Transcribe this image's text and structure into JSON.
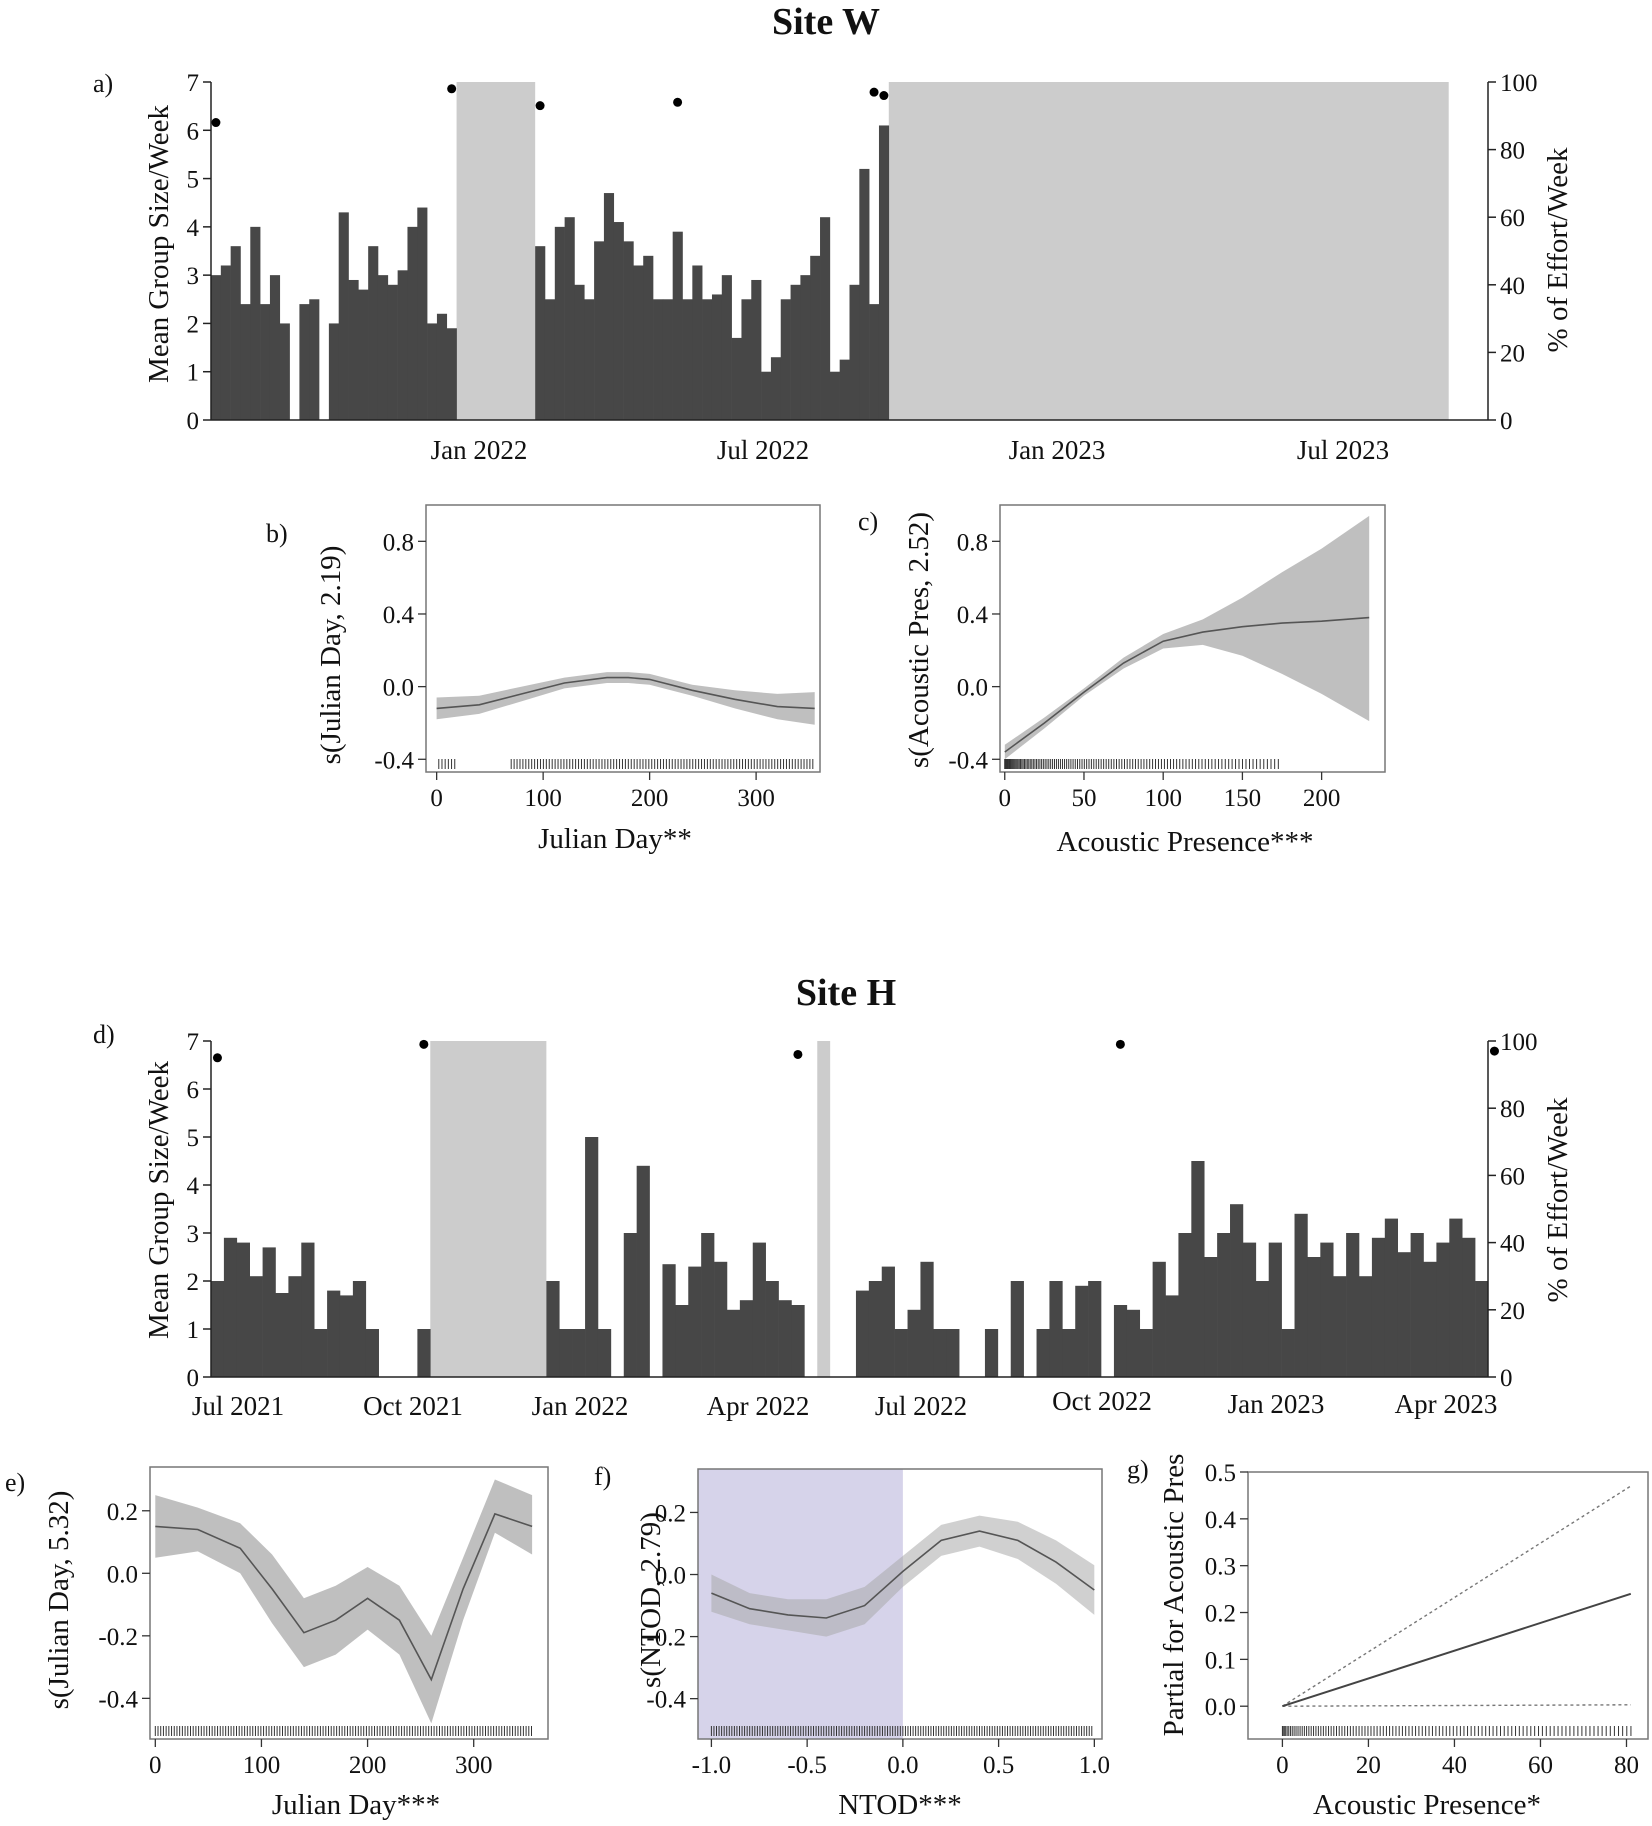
{
  "figure": {
    "site_w_title": "Site W",
    "site_h_title": "Site H"
  },
  "chart_data": [
    {
      "id": "a",
      "panel_label": "a)",
      "type": "bar",
      "bar_color": "#474747",
      "gap_color": "#cccccc",
      "ylabel": "Mean Group Size/Week",
      "ylabel_right": "% of Effort/Week",
      "ylim": [
        0,
        7
      ],
      "yticks": [
        "0",
        "1",
        "2",
        "3",
        "4",
        "5",
        "6",
        "7"
      ],
      "yticks_right": [
        "0",
        "20",
        "40",
        "60",
        "80",
        "100"
      ],
      "xticks": [
        "Jan 2022",
        "Jul 2022",
        "Jan 2023",
        "Jul 2023"
      ],
      "grid": false,
      "values": [
        3.0,
        3.2,
        3.6,
        2.4,
        4.0,
        2.4,
        3.0,
        2.0,
        null,
        2.4,
        2.5,
        null,
        2.0,
        4.3,
        2.9,
        2.7,
        3.6,
        3.0,
        2.8,
        3.1,
        4.0,
        4.4,
        2.0,
        2.2,
        1.9,
        null,
        null,
        null,
        null,
        null,
        null,
        null,
        null,
        3.6,
        2.5,
        4.0,
        4.2,
        2.8,
        2.5,
        3.7,
        4.7,
        4.1,
        3.7,
        3.2,
        3.4,
        2.5,
        2.5,
        3.9,
        2.5,
        3.2,
        2.5,
        2.6,
        3.0,
        1.7,
        2.5,
        2.9,
        1.0,
        1.3,
        2.5,
        2.8,
        3.0,
        3.4,
        4.2,
        1.0,
        1.25,
        2.8,
        5.2,
        2.4,
        6.1,
        null,
        null,
        null,
        null,
        null,
        null,
        null,
        null,
        null,
        null,
        null,
        null,
        null,
        null,
        null,
        null,
        null,
        null,
        null,
        null,
        null,
        null,
        null,
        null,
        null,
        null,
        null,
        null,
        null,
        null,
        null,
        null,
        null,
        null,
        null,
        null,
        null,
        null,
        null,
        null,
        null,
        null,
        null,
        null,
        null,
        null,
        null,
        null,
        null,
        null,
        null,
        null,
        null,
        null,
        null,
        null,
        null,
        null,
        null,
        null,
        null
      ],
      "effort_percent": [
        88,
        null,
        null,
        null,
        null,
        null,
        null,
        null,
        null,
        null,
        null,
        null,
        null,
        null,
        null,
        null,
        null,
        null,
        null,
        null,
        null,
        null,
        null,
        null,
        98,
        null,
        null,
        null,
        null,
        null,
        null,
        null,
        null,
        93,
        null,
        null,
        null,
        null,
        null,
        null,
        null,
        null,
        null,
        null,
        null,
        null,
        null,
        94,
        null,
        null,
        null,
        null,
        null,
        null,
        null,
        null,
        null,
        null,
        null,
        null,
        null,
        null,
        null,
        null,
        null,
        null,
        null,
        97,
        96
      ]
    },
    {
      "id": "b",
      "panel_label": "b)",
      "type": "line",
      "ylabel": "s(Julian Day, 2.19)",
      "xlabel": "Julian Day**",
      "xlim": [
        -10,
        360
      ],
      "ylim": [
        -0.47,
        1.0
      ],
      "xticks": [
        "0",
        "100",
        "200",
        "300"
      ],
      "yticks": [
        "-0.4",
        "0.0",
        "0.4",
        "0.8"
      ],
      "x": [
        0,
        40,
        80,
        120,
        160,
        180,
        200,
        240,
        280,
        320,
        355
      ],
      "y": [
        -0.12,
        -0.1,
        -0.04,
        0.02,
        0.05,
        0.05,
        0.04,
        -0.02,
        -0.07,
        -0.11,
        -0.12
      ],
      "lower": [
        -0.18,
        -0.15,
        -0.08,
        -0.01,
        0.02,
        0.02,
        0.01,
        -0.05,
        -0.12,
        -0.18,
        -0.21
      ],
      "upper": [
        -0.06,
        -0.05,
        0.0,
        0.05,
        0.08,
        0.08,
        0.07,
        0.01,
        -0.02,
        -0.04,
        -0.03
      ]
    },
    {
      "id": "c",
      "panel_label": "c)",
      "type": "line",
      "ylabel": "s(Acoustic Pres, 2.52)",
      "xlabel": "Acoustic Presence***",
      "xlim": [
        -3,
        240
      ],
      "ylim": [
        -0.47,
        1.0
      ],
      "xticks": [
        "0",
        "50",
        "100",
        "150",
        "200"
      ],
      "yticks": [
        "-0.4",
        "0.0",
        "0.4",
        "0.8"
      ],
      "x": [
        0,
        25,
        50,
        75,
        100,
        125,
        150,
        175,
        200,
        230
      ],
      "y": [
        -0.36,
        -0.2,
        -0.03,
        0.13,
        0.25,
        0.3,
        0.33,
        0.35,
        0.36,
        0.38
      ],
      "lower": [
        -0.4,
        -0.23,
        -0.05,
        0.1,
        0.21,
        0.23,
        0.17,
        0.07,
        -0.04,
        -0.19
      ],
      "upper": [
        -0.32,
        -0.17,
        -0.01,
        0.16,
        0.29,
        0.37,
        0.49,
        0.63,
        0.76,
        0.94
      ]
    },
    {
      "id": "d",
      "panel_label": "d)",
      "type": "bar",
      "bar_color": "#474747",
      "gap_color": "#cccccc",
      "ylabel": "Mean Group Size/Week",
      "ylabel_right": "% of Effort/Week",
      "ylim": [
        0,
        7
      ],
      "yticks": [
        "0",
        "1",
        "2",
        "3",
        "4",
        "5",
        "6",
        "7"
      ],
      "yticks_right": [
        "0",
        "20",
        "40",
        "60",
        "80",
        "100"
      ],
      "xticks": [
        "Jul 2021",
        "Oct 2021",
        "Jan 2022",
        "Apr 2022",
        "Jul 2022",
        "Oct 2022",
        "Jan 2023",
        "Apr 2023"
      ],
      "grid": false,
      "values": [
        2.0,
        2.9,
        2.8,
        2.1,
        2.7,
        1.75,
        2.1,
        2.8,
        1.0,
        1.8,
        1.7,
        2.0,
        1.0,
        null,
        null,
        null,
        1.0,
        null,
        null,
        null,
        null,
        null,
        null,
        null,
        null,
        null,
        2.0,
        1.0,
        1.0,
        5.0,
        1.0,
        null,
        3.0,
        4.4,
        null,
        2.35,
        1.5,
        2.3,
        3.0,
        2.4,
        1.4,
        1.6,
        2.8,
        2.0,
        1.6,
        1.5,
        null,
        null,
        null,
        null,
        1.8,
        2.0,
        2.3,
        1.0,
        1.4,
        2.4,
        1.0,
        1.0,
        null,
        null,
        1.0,
        null,
        2.0,
        null,
        1.0,
        2.0,
        1.0,
        1.9,
        2.0,
        null,
        1.5,
        1.4,
        1.0,
        2.4,
        1.7,
        3.0,
        4.5,
        2.5,
        3.0,
        3.6,
        2.8,
        2.0,
        2.8,
        1.0,
        3.4,
        2.5,
        2.8,
        2.1,
        3.0,
        2.1,
        2.9,
        3.3,
        2.6,
        3.0,
        2.4,
        2.8,
        3.3,
        2.9,
        2.0
      ],
      "effort_percent": [
        95,
        null,
        null,
        null,
        null,
        null,
        null,
        null,
        null,
        null,
        null,
        null,
        null,
        null,
        null,
        null,
        99,
        null,
        null,
        null,
        null,
        null,
        null,
        null,
        null,
        null,
        null,
        null,
        null,
        null,
        null,
        null,
        null,
        null,
        null,
        null,
        null,
        null,
        null,
        null,
        null,
        null,
        null,
        null,
        null,
        96,
        null,
        null,
        null,
        null,
        null,
        null,
        null,
        null,
        null,
        null,
        null,
        null,
        null,
        null,
        null,
        null,
        null,
        null,
        null,
        null,
        null,
        null,
        null,
        null,
        99,
        null,
        null,
        null,
        null,
        null,
        null,
        null,
        null,
        null,
        null,
        null,
        null,
        null,
        null,
        null,
        null,
        null,
        null,
        null,
        null,
        null,
        null,
        null,
        null,
        null,
        null,
        null,
        null,
        97
      ]
    },
    {
      "id": "e",
      "panel_label": "e)",
      "type": "line",
      "ylabel": "s(Julian Day, 5.32)",
      "xlabel": "Julian Day***",
      "xlim": [
        -5,
        370
      ],
      "ylim": [
        -0.53,
        0.34
      ],
      "xticks": [
        "0",
        "100",
        "200",
        "300"
      ],
      "yticks": [
        "-0.4",
        "-0.2",
        "0.0",
        "0.2"
      ],
      "x": [
        0,
        40,
        80,
        110,
        140,
        170,
        200,
        230,
        260,
        290,
        320,
        355
      ],
      "y": [
        0.15,
        0.14,
        0.08,
        -0.05,
        -0.19,
        -0.15,
        -0.08,
        -0.15,
        -0.34,
        -0.05,
        0.19,
        0.15
      ],
      "lower": [
        0.05,
        0.07,
        0.0,
        -0.16,
        -0.3,
        -0.26,
        -0.18,
        -0.26,
        -0.48,
        -0.15,
        0.13,
        0.06
      ],
      "upper": [
        0.25,
        0.21,
        0.16,
        0.06,
        -0.08,
        -0.04,
        0.02,
        -0.04,
        -0.2,
        0.05,
        0.3,
        0.25
      ]
    },
    {
      "id": "f",
      "panel_label": "f)",
      "type": "line",
      "ylabel": "s(NTOD, 2.79)",
      "xlabel": "NTOD***",
      "xlim": [
        -1.07,
        1.04
      ],
      "ylim": [
        -0.53,
        0.34
      ],
      "xticks": [
        "-1.0",
        "-0.5",
        "0.0",
        "0.5",
        "1.0"
      ],
      "yticks": [
        "-0.4",
        "-0.2",
        "0.0",
        "0.2"
      ],
      "shade_color": "#d6d3ea",
      "x": [
        -1.0,
        -0.8,
        -0.6,
        -0.4,
        -0.2,
        0.0,
        0.2,
        0.4,
        0.6,
        0.8,
        1.0
      ],
      "y": [
        -0.06,
        -0.11,
        -0.13,
        -0.14,
        -0.1,
        0.01,
        0.11,
        0.14,
        0.11,
        0.04,
        -0.05
      ],
      "lower": [
        -0.12,
        -0.16,
        -0.18,
        -0.2,
        -0.16,
        -0.04,
        0.06,
        0.09,
        0.05,
        -0.03,
        -0.13
      ],
      "upper": [
        0.0,
        -0.06,
        -0.08,
        -0.08,
        -0.04,
        0.06,
        0.16,
        0.19,
        0.17,
        0.11,
        0.03
      ]
    },
    {
      "id": "g",
      "panel_label": "g)",
      "type": "line",
      "ylabel": "Partial for Acoustic Pres",
      "xlabel": "Acoustic Presence*",
      "xlim": [
        -8,
        85
      ],
      "ylim": [
        -0.07,
        0.5
      ],
      "xticks": [
        "0",
        "20",
        "40",
        "60",
        "80"
      ],
      "yticks": [
        "0.0",
        "0.1",
        "0.2",
        "0.3",
        "0.4",
        "0.5"
      ],
      "x": [
        0,
        81
      ],
      "y": [
        0.0,
        0.24
      ],
      "upper": [
        0.0,
        0.47
      ],
      "lower": [
        0.0,
        0.003
      ]
    }
  ]
}
